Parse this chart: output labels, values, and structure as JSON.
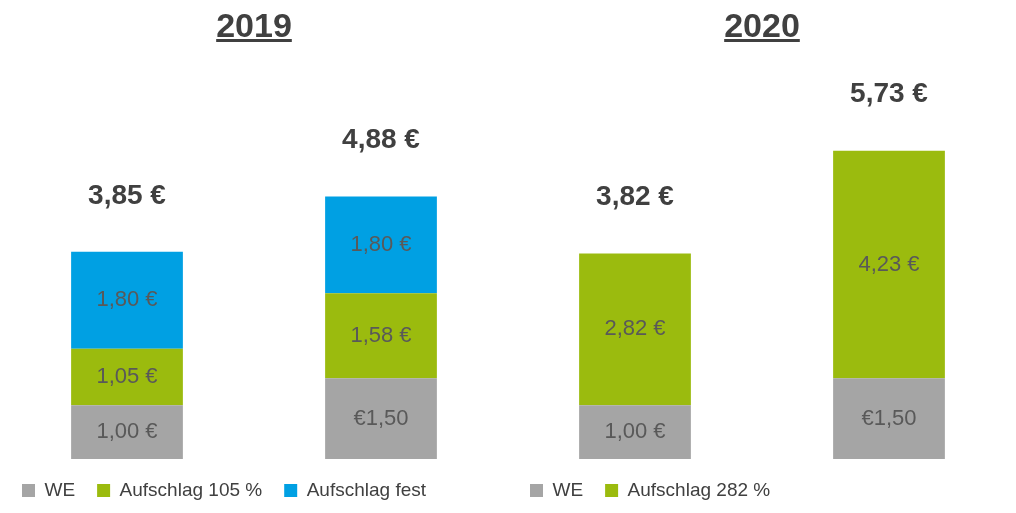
{
  "chart_data": [
    {
      "type": "bar",
      "title": "2019",
      "categories": [
        null,
        null
      ],
      "stacked": true,
      "legend": "bottom left",
      "totals": [
        "3,85 €",
        "4,88 €"
      ],
      "series": [
        {
          "name": "WE",
          "color": "#a5a5a5",
          "values": [
            1.0,
            1.5
          ],
          "value_labels": [
            "1,00 €",
            "€1,50"
          ]
        },
        {
          "name": "Aufschlag 105 %",
          "color": "#9bbb0e",
          "values": [
            1.05,
            1.58
          ],
          "value_labels": [
            "1,05 €",
            "1,58 €"
          ]
        },
        {
          "name": "Aufschlag fest",
          "color": "#00a0e3",
          "values": [
            1.8,
            1.8
          ],
          "value_labels": [
            "1,80 €",
            "1,80 €"
          ]
        }
      ]
    },
    {
      "type": "bar",
      "title": "2020",
      "categories": [
        null,
        null
      ],
      "stacked": true,
      "legend": "bottom left",
      "totals": [
        "3,82 €",
        "5,73 €"
      ],
      "series": [
        {
          "name": "WE",
          "color": "#a5a5a5",
          "values": [
            1.0,
            1.5
          ],
          "value_labels": [
            "1,00 €",
            "€1,50"
          ]
        },
        {
          "name": "Aufschlag 282 %",
          "color": "#9bbb0e",
          "values": [
            2.82,
            4.23
          ],
          "value_labels": [
            "2,82 €",
            "4,23 €"
          ]
        }
      ]
    }
  ]
}
